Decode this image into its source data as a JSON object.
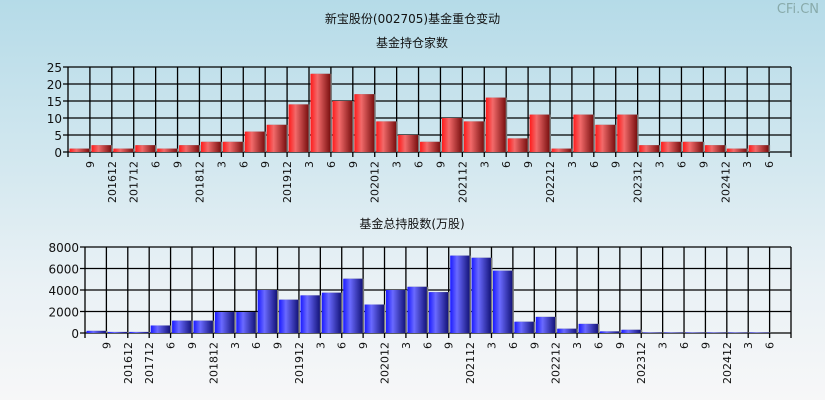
{
  "title": "新宝股份(002705)基金重仓变动",
  "watermark": "CFi.CN",
  "colors": {
    "top_bar": "#e8202a",
    "bottom_bar": "#3030f0",
    "grid": "#000000"
  },
  "chart_data": [
    {
      "type": "bar",
      "title": "基金持仓家数",
      "categories": [
        "9",
        "201612",
        "201712",
        "6",
        "9",
        "201812",
        "3",
        "6",
        "9",
        "201912",
        "3",
        "6",
        "9",
        "202012",
        "3",
        "6",
        "9",
        "202112",
        "3",
        "6",
        "9",
        "202212",
        "3",
        "6",
        "9",
        "202312",
        "3",
        "6",
        "9",
        "202412",
        "3",
        "6"
      ],
      "values": [
        1,
        2,
        1,
        2,
        1,
        2,
        3,
        3,
        6,
        8,
        14,
        23,
        15,
        17,
        9,
        5,
        3,
        10,
        9,
        16,
        4,
        11,
        1,
        11,
        8,
        11,
        2,
        3,
        3,
        2,
        1,
        2
      ],
      "yticks": [
        0,
        5,
        10,
        15,
        20,
        25
      ],
      "ylim": [
        0,
        25
      ],
      "grid": true
    },
    {
      "type": "bar",
      "title": "基金总持股数(万股)",
      "categories": [
        "9",
        "201612",
        "201712",
        "6",
        "9",
        "201812",
        "3",
        "6",
        "9",
        "201912",
        "3",
        "6",
        "9",
        "202012",
        "3",
        "6",
        "9",
        "202112",
        "3",
        "6",
        "9",
        "202212",
        "3",
        "6",
        "9",
        "202312",
        "3",
        "6",
        "9",
        "202412",
        "3",
        "6"
      ],
      "values": [
        200,
        100,
        100,
        700,
        1150,
        1150,
        1950,
        1950,
        4000,
        3100,
        3500,
        3750,
        5050,
        2650,
        4000,
        4300,
        3800,
        7200,
        7000,
        5800,
        1050,
        1500,
        400,
        850,
        150,
        300,
        50,
        50,
        50,
        50,
        50,
        50
      ],
      "yticks": [
        0,
        2000,
        4000,
        6000,
        8000
      ],
      "ylim": [
        0,
        8000
      ],
      "grid": true
    }
  ]
}
